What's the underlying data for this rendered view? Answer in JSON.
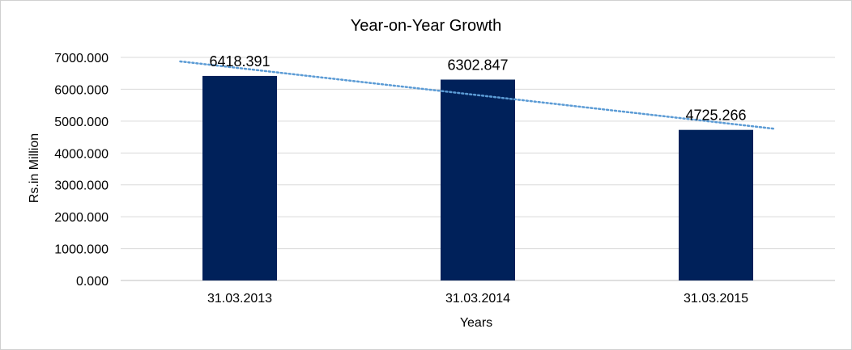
{
  "chart_data": {
    "type": "bar",
    "title": "Year-on-Year Growth",
    "xlabel": "Years",
    "ylabel": "Rs.in Million",
    "categories": [
      "31.03.2013",
      "31.03.2014",
      "31.03.2015"
    ],
    "values": [
      6418.391,
      6302.847,
      4725.266
    ],
    "data_labels": [
      "6418.391",
      "6302.847",
      "4725.266"
    ],
    "y_ticks": [
      0,
      1000,
      2000,
      3000,
      4000,
      5000,
      6000,
      7000
    ],
    "y_tick_labels": [
      "0.000",
      "1000.000",
      "2000.000",
      "3000.000",
      "4000.000",
      "5000.000",
      "6000.000",
      "7000.000"
    ],
    "ylim": [
      0,
      7000
    ],
    "grid": true,
    "legend": "none",
    "trendline": {
      "type": "linear",
      "style": "dotted"
    },
    "colors": {
      "bar": "#00215a",
      "trendline": "#5b9bd5",
      "grid": "#d9d9d9",
      "axis": "#bfbfbf"
    }
  }
}
